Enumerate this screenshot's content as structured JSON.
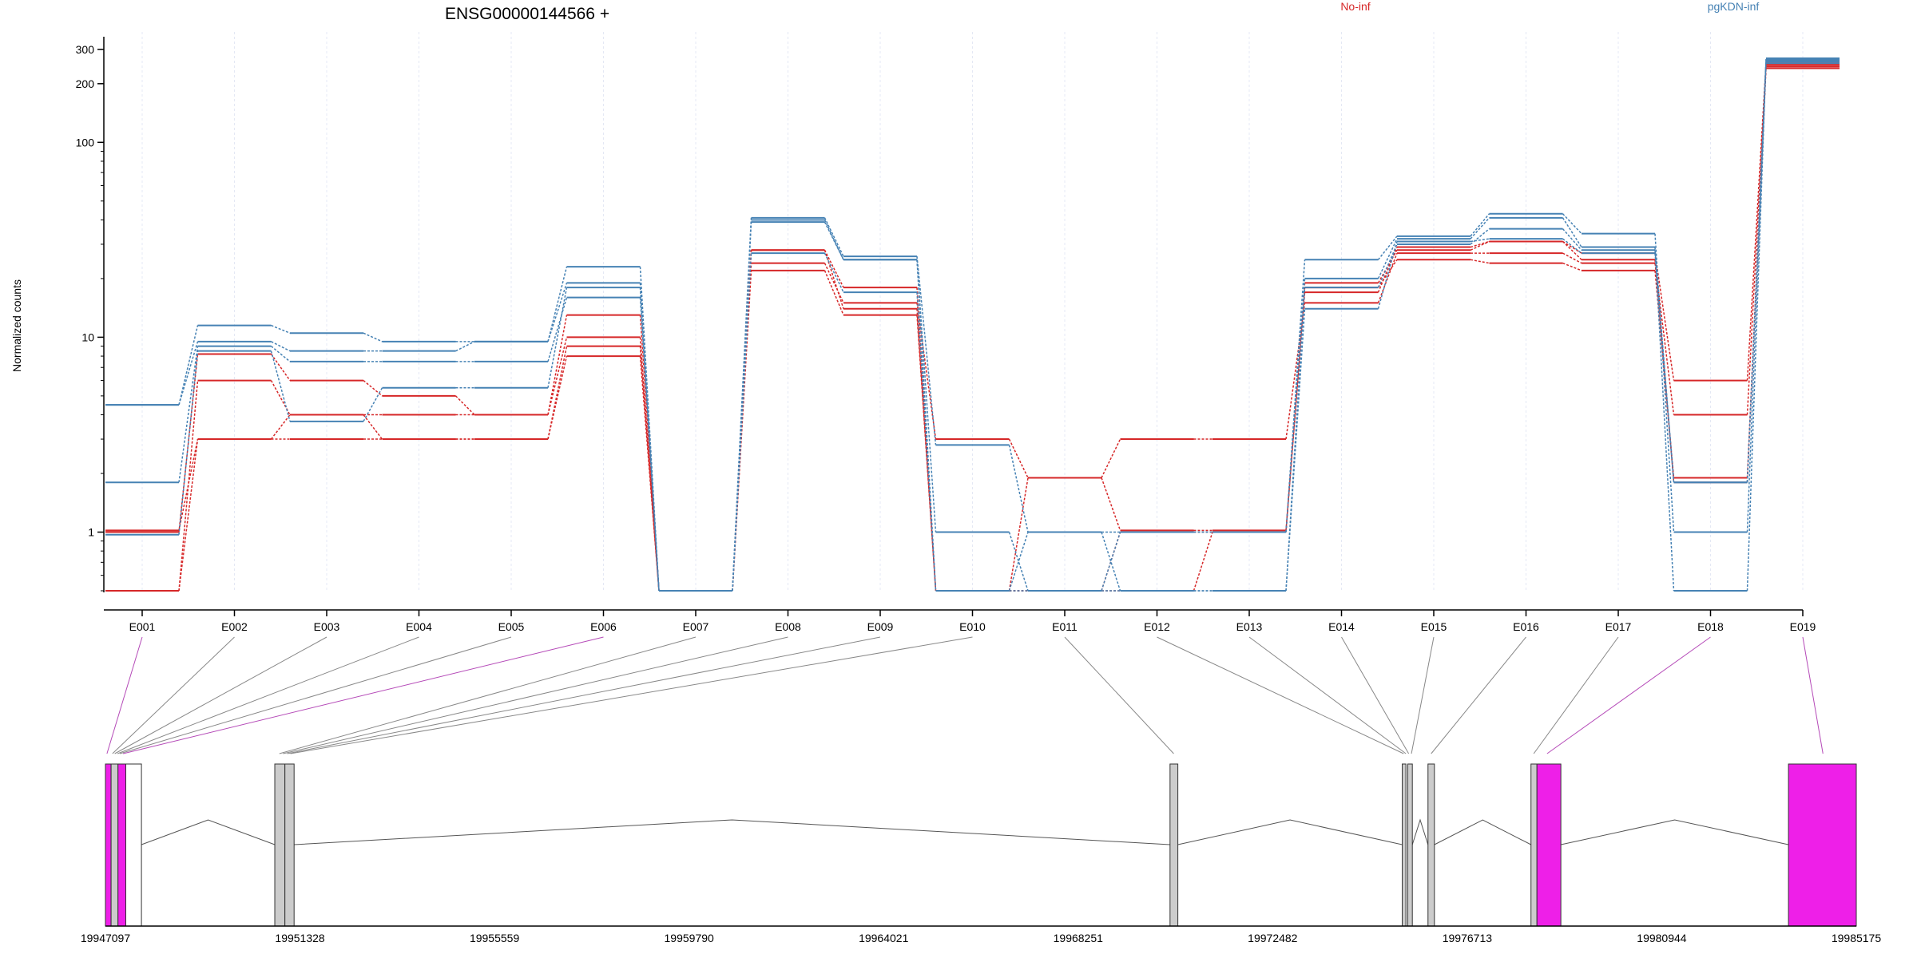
{
  "chart_data": {
    "type": "line",
    "title": "ENSG00000144566 +",
    "ylabel": "Normalized counts",
    "y_scale": "log",
    "ylim": [
      0.5,
      320
    ],
    "yticks": [
      {
        "value": 1,
        "label": "1"
      },
      {
        "value": 10,
        "label": "10"
      },
      {
        "value": 100,
        "label": "100"
      },
      {
        "value": 200,
        "label": "200"
      },
      {
        "value": 300,
        "label": "300"
      }
    ],
    "grid": true,
    "legend": [
      {
        "label": "No-inf",
        "color": "#d62728"
      },
      {
        "label": "pgKDN-inf",
        "color": "#4682b4"
      }
    ],
    "categories": [
      "E001",
      "E002",
      "E003",
      "E004",
      "E005",
      "E006",
      "E007",
      "E008",
      "E009",
      "E010",
      "E011",
      "E012",
      "E013",
      "E014",
      "E015",
      "E016",
      "E017",
      "E018",
      "E019"
    ],
    "series": [
      {
        "group": "No-inf",
        "color": "#d62728",
        "values": [
          1.0,
          8.2,
          6.0,
          5.0,
          4.0,
          13.0,
          0.5,
          28.0,
          18.0,
          0.5,
          1.9,
          1.02,
          1.02,
          17.0,
          29.0,
          31.0,
          27.0,
          6.0,
          255
        ]
      },
      {
        "group": "No-inf",
        "color": "#d62728",
        "values": [
          0.5,
          6.0,
          4.0,
          4.0,
          4.0,
          10.0,
          0.5,
          24.0,
          15.0,
          3.0,
          1.9,
          3.0,
          3.0,
          15.0,
          27.0,
          27.0,
          24.0,
          4.0,
          245
        ]
      },
      {
        "group": "No-inf",
        "color": "#d62728",
        "values": [
          0.5,
          3.0,
          3.0,
          3.0,
          3.0,
          8.0,
          0.5,
          22.0,
          13.0,
          0.5,
          0.5,
          0.5,
          1.0,
          18.0,
          25.0,
          24.0,
          22.0,
          1.9,
          240
        ]
      },
      {
        "group": "No-inf",
        "color": "#d62728",
        "values": [
          1.02,
          3.0,
          4.0,
          3.0,
          3.0,
          9.0,
          0.5,
          28.0,
          14.0,
          0.5,
          0.5,
          1.0,
          1.0,
          19.0,
          28.0,
          31.0,
          25.0,
          1.8,
          250
        ]
      },
      {
        "group": "pgKDN-inf",
        "color": "#4682b4",
        "values": [
          4.5,
          11.5,
          10.5,
          9.5,
          9.5,
          23.0,
          0.5,
          41.0,
          26.0,
          2.8,
          1.0,
          1.0,
          1.0,
          25.0,
          33.0,
          43.0,
          34.0,
          1.0,
          270
        ]
      },
      {
        "group": "pgKDN-inf",
        "color": "#4682b4",
        "values": [
          4.5,
          9.5,
          8.5,
          8.5,
          9.5,
          19.0,
          0.5,
          39.0,
          25.0,
          1.0,
          0.5,
          1.0,
          1.0,
          20.0,
          32.0,
          41.0,
          29.0,
          0.5,
          265
        ]
      },
      {
        "group": "pgKDN-inf",
        "color": "#4682b4",
        "values": [
          1.8,
          9.0,
          7.5,
          7.5,
          7.5,
          16.0,
          0.5,
          27.0,
          17.0,
          0.5,
          1.0,
          0.5,
          0.5,
          18.0,
          30.0,
          36.0,
          28.0,
          1.8,
          255
        ]
      },
      {
        "group": "pgKDN-inf",
        "color": "#4682b4",
        "values": [
          0.97,
          8.5,
          3.7,
          5.5,
          5.5,
          18.0,
          0.5,
          40.0,
          25.0,
          0.5,
          0.5,
          0.5,
          0.5,
          14.0,
          31.0,
          32.0,
          27.0,
          1.8,
          260
        ]
      }
    ],
    "gene_model": {
      "coord_range": [
        19947097,
        19985175
      ],
      "coord_ticks": [
        "19947097",
        "19951328",
        "19955559",
        "19959790",
        "19964021",
        "19968251",
        "19972482",
        "19976713",
        "19980944",
        "19985175"
      ],
      "exons": [
        {
          "start": 19947097,
          "end": 19947220,
          "color": "#ee1fe8"
        },
        {
          "start": 19947220,
          "end": 19947370,
          "color": "#cccccc"
        },
        {
          "start": 19947370,
          "end": 19947540,
          "color": "#ee1fe8"
        },
        {
          "start": 19947540,
          "end": 19947880,
          "color": "#ffffff"
        },
        {
          "start": 19950780,
          "end": 19951000,
          "color": "#cccccc"
        },
        {
          "start": 19951000,
          "end": 19951200,
          "color": "#cccccc"
        },
        {
          "start": 19970250,
          "end": 19970420,
          "color": "#cccccc"
        },
        {
          "start": 19975300,
          "end": 19975380,
          "color": "#cccccc"
        },
        {
          "start": 19975420,
          "end": 19975520,
          "color": "#cccccc"
        },
        {
          "start": 19975860,
          "end": 19976000,
          "color": "#cccccc"
        },
        {
          "start": 19978100,
          "end": 19978230,
          "color": "#cccccc"
        },
        {
          "start": 19978230,
          "end": 19978750,
          "color": "#ee1fe8"
        },
        {
          "start": 19983700,
          "end": 19985175,
          "color": "#ee1fe8"
        }
      ],
      "introns": [
        {
          "from": 19947880,
          "to": 19950780
        },
        {
          "from": 19951200,
          "to": 19970250
        },
        {
          "from": 19970420,
          "to": 19975300
        },
        {
          "from": 19975520,
          "to": 19975860
        },
        {
          "from": 19976000,
          "to": 19978100
        },
        {
          "from": 19978750,
          "to": 19983700
        }
      ],
      "connectors": [
        {
          "exon": "E001",
          "coord": 19947130,
          "color": "#b54ab8"
        },
        {
          "exon": "E002",
          "coord": 19947250,
          "color": "#888888"
        },
        {
          "exon": "E003",
          "coord": 19947300,
          "color": "#888888"
        },
        {
          "exon": "E004",
          "coord": 19947360,
          "color": "#888888"
        },
        {
          "exon": "E005",
          "coord": 19947410,
          "color": "#888888"
        },
        {
          "exon": "E006",
          "coord": 19947480,
          "color": "#b54ab8"
        },
        {
          "exon": "E007",
          "coord": 19950880,
          "color": "#888888"
        },
        {
          "exon": "E008",
          "coord": 19950960,
          "color": "#888888"
        },
        {
          "exon": "E009",
          "coord": 19951050,
          "color": "#888888"
        },
        {
          "exon": "E010",
          "coord": 19951120,
          "color": "#888888"
        },
        {
          "exon": "E011",
          "coord": 19970330,
          "color": "#888888"
        },
        {
          "exon": "E012",
          "coord": 19975330,
          "color": "#888888"
        },
        {
          "exon": "E013",
          "coord": 19975380,
          "color": "#888888"
        },
        {
          "exon": "E014",
          "coord": 19975440,
          "color": "#888888"
        },
        {
          "exon": "E015",
          "coord": 19975500,
          "color": "#888888"
        },
        {
          "exon": "E016",
          "coord": 19975930,
          "color": "#888888"
        },
        {
          "exon": "E017",
          "coord": 19978160,
          "color": "#888888"
        },
        {
          "exon": "E018",
          "coord": 19978450,
          "color": "#b54ab8"
        },
        {
          "exon": "E019",
          "coord": 19984450,
          "color": "#b54ab8"
        }
      ]
    }
  }
}
